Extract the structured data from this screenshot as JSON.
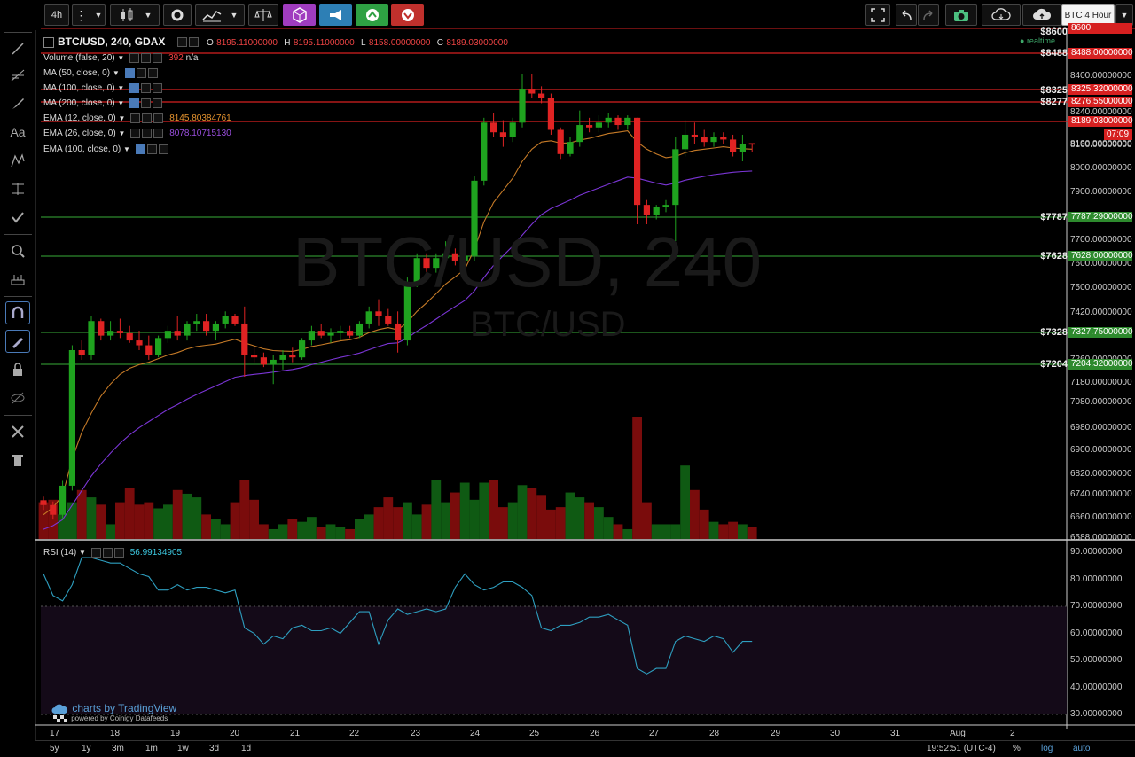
{
  "toolbar": {
    "interval": "4h",
    "tooltip": "BTC 4 Hour"
  },
  "legend": {
    "symbol": "BTC/USD, 240, GDAX",
    "o_label": "O",
    "o_value": "8195.11000000",
    "h_label": "H",
    "h_value": "8195.11000000",
    "l_label": "L",
    "l_value": "8158.00000000",
    "c_label": "C",
    "c_value": "8189.03000000",
    "volume": "Volume (false, 20)",
    "volume_value": "392",
    "volume_na": "n/a",
    "ma50": "MA (50, close, 0)",
    "ma100": "MA (100, close, 0)",
    "ma200": "MA (200, close, 0)",
    "ema12": "EMA (12, close, 0)",
    "ema12_value": "8145.80384761",
    "ema26": "EMA (26, close, 0)",
    "ema26_value": "8078.10715130",
    "ema100": "EMA (100, close, 0)",
    "rsi": "RSI (14)",
    "rsi_value": "56.99134905",
    "realtime": "realtime"
  },
  "watermark": {
    "main": "BTC/USD, 240",
    "sub": "BTC/USD"
  },
  "branding": {
    "tv": "charts by TradingView",
    "powered": "powered by Coinigy Datafeeds"
  },
  "price_ticks": [
    "8600",
    "8400.00000000",
    "8320.00000000",
    "8240.00000000",
    "8160.00000000",
    "8100.00000000",
    "8000.00000000",
    "7900.00000000",
    "7800.00000000",
    "7700.00000000",
    "7600.00000000",
    "7500.00000000",
    "7420.00000000",
    "7340.00000000",
    "7260.00000000",
    "7180.00000000",
    "7080.00000000",
    "6980.00000000",
    "6900.00000000",
    "6820.00000000",
    "6740.00000000",
    "6660.00000000",
    "6588.00000000"
  ],
  "rsi_ticks": [
    "90.00000000",
    "80.00000000",
    "70.00000000",
    "60.00000000",
    "50.00000000",
    "40.00000000",
    "30.00000000"
  ],
  "level_lines": [
    {
      "value": "8488.00000000",
      "short": "$8488",
      "color": "#d62020",
      "y": 60
    },
    {
      "value": "8325.32000000",
      "short": "$8325",
      "color": "#d62020",
      "y": 101
    },
    {
      "value": "8276.55000000",
      "short": "$8277",
      "color": "#d62020",
      "y": 115
    },
    {
      "value": "8189.03000000",
      "short": "",
      "color": "#d62020",
      "y": 137
    },
    {
      "value": "7787.29000000",
      "short": "$7787",
      "color": "#2d8a2d",
      "y": 245
    },
    {
      "value": "7628.00000000",
      "short": "$7628",
      "color": "#2d8a2d",
      "y": 289
    },
    {
      "value": "7327.75000000",
      "short": "$7328",
      "color": "#2d8a2d",
      "y": 375
    },
    {
      "value": "7204.32000000",
      "short": "$7204",
      "color": "#2d8a2d",
      "y": 411
    }
  ],
  "top_level": {
    "value": "8600",
    "short": "$8600"
  },
  "countdown": "07:09",
  "x_ticks": [
    {
      "label": "17",
      "x": 60
    },
    {
      "label": "18",
      "x": 128
    },
    {
      "label": "19",
      "x": 196
    },
    {
      "label": "20",
      "x": 263
    },
    {
      "label": "21",
      "x": 331
    },
    {
      "label": "22",
      "x": 398
    },
    {
      "label": "23",
      "x": 467
    },
    {
      "label": "24",
      "x": 534
    },
    {
      "label": "25",
      "x": 601
    },
    {
      "label": "26",
      "x": 669
    },
    {
      "label": "27",
      "x": 736
    },
    {
      "label": "28",
      "x": 804
    },
    {
      "label": "29",
      "x": 873
    },
    {
      "label": "30",
      "x": 940
    },
    {
      "label": "31",
      "x": 1008
    },
    {
      "label": "Aug",
      "x": 1075
    },
    {
      "label": "2",
      "x": 1143
    }
  ],
  "bottom": {
    "ranges": [
      "5y",
      "1y",
      "3m",
      "1m",
      "1w",
      "3d",
      "1d"
    ],
    "clock": "19:52:51 (UTC-4)",
    "pct": "%",
    "log": "log",
    "auto": "auto"
  },
  "chart_data": {
    "type": "candlestick",
    "title": "BTC/USD, 240, GDAX",
    "ylabel": "",
    "ylim": [
      6560,
      8640
    ],
    "x_axis": "July 17 – Aug 2, 4h candles",
    "candles": [
      [
        6720,
        6735,
        6680,
        6700
      ],
      [
        6700,
        6715,
        6640,
        6660
      ],
      [
        6660,
        6800,
        6640,
        6780
      ],
      [
        6780,
        7360,
        6760,
        7340
      ],
      [
        7340,
        7380,
        7300,
        7320
      ],
      [
        7320,
        7480,
        7300,
        7460
      ],
      [
        7460,
        7470,
        7380,
        7400
      ],
      [
        7400,
        7460,
        7380,
        7420
      ],
      [
        7420,
        7470,
        7390,
        7410
      ],
      [
        7410,
        7440,
        7370,
        7380
      ],
      [
        7380,
        7420,
        7340,
        7360
      ],
      [
        7360,
        7400,
        7300,
        7320
      ],
      [
        7320,
        7400,
        7310,
        7390
      ],
      [
        7390,
        7440,
        7370,
        7420
      ],
      [
        7420,
        7480,
        7380,
        7400
      ],
      [
        7400,
        7460,
        7380,
        7450
      ],
      [
        7450,
        7490,
        7420,
        7460
      ],
      [
        7460,
        7490,
        7400,
        7420
      ],
      [
        7420,
        7460,
        7380,
        7450
      ],
      [
        7450,
        7500,
        7430,
        7480
      ],
      [
        7480,
        7490,
        7440,
        7450
      ],
      [
        7450,
        7520,
        7230,
        7320
      ],
      [
        7320,
        7350,
        7290,
        7310
      ],
      [
        7310,
        7330,
        7270,
        7280
      ],
      [
        7280,
        7320,
        7200,
        7300
      ],
      [
        7300,
        7340,
        7260,
        7320
      ],
      [
        7320,
        7350,
        7290,
        7310
      ],
      [
        7310,
        7390,
        7300,
        7380
      ],
      [
        7380,
        7440,
        7360,
        7420
      ],
      [
        7420,
        7450,
        7390,
        7400
      ],
      [
        7400,
        7430,
        7370,
        7410
      ],
      [
        7410,
        7440,
        7380,
        7420
      ],
      [
        7420,
        7440,
        7390,
        7400
      ],
      [
        7400,
        7460,
        7390,
        7450
      ],
      [
        7450,
        7520,
        7430,
        7500
      ],
      [
        7500,
        7550,
        7440,
        7480
      ],
      [
        7480,
        7510,
        7440,
        7450
      ],
      [
        7450,
        7500,
        7330,
        7380
      ],
      [
        7380,
        7640,
        7360,
        7620
      ],
      [
        7620,
        7740,
        7600,
        7720
      ],
      [
        7720,
        7740,
        7650,
        7680
      ],
      [
        7680,
        7740,
        7660,
        7720
      ],
      [
        7720,
        7790,
        7700,
        7740
      ],
      [
        7740,
        7760,
        7690,
        7710
      ],
      [
        7710,
        7760,
        7690,
        7730
      ],
      [
        7730,
        8060,
        7710,
        8040
      ],
      [
        8040,
        8300,
        8020,
        8280
      ],
      [
        8280,
        8320,
        8220,
        8240
      ],
      [
        8240,
        8290,
        8180,
        8220
      ],
      [
        8220,
        8300,
        8200,
        8280
      ],
      [
        8280,
        8480,
        8260,
        8420
      ],
      [
        8420,
        8480,
        8380,
        8400
      ],
      [
        8400,
        8430,
        8360,
        8380
      ],
      [
        8380,
        8400,
        8230,
        8250
      ],
      [
        8250,
        8260,
        8130,
        8150
      ],
      [
        8150,
        8220,
        8140,
        8200
      ],
      [
        8200,
        8330,
        8180,
        8270
      ],
      [
        8270,
        8300,
        8240,
        8260
      ],
      [
        8260,
        8310,
        8240,
        8280
      ],
      [
        8280,
        8320,
        8260,
        8300
      ],
      [
        8300,
        8310,
        8250,
        8270
      ],
      [
        8270,
        8310,
        8250,
        8300
      ],
      [
        8300,
        8300,
        7860,
        7940
      ],
      [
        7940,
        7960,
        7860,
        7900
      ],
      [
        7900,
        7940,
        7880,
        7930
      ],
      [
        7930,
        7960,
        7910,
        7940
      ],
      [
        7940,
        8220,
        7790,
        8170
      ],
      [
        8170,
        8290,
        8140,
        8230
      ],
      [
        8230,
        8280,
        8190,
        8220
      ],
      [
        8220,
        8250,
        8180,
        8200
      ],
      [
        8200,
        8240,
        8180,
        8220
      ],
      [
        8220,
        8240,
        8190,
        8210
      ],
      [
        8210,
        8230,
        8140,
        8160
      ],
      [
        8160,
        8230,
        8120,
        8190
      ],
      [
        8195,
        8195,
        8158,
        8189
      ]
    ],
    "volume": [
      30,
      32,
      20,
      30,
      40,
      34,
      28,
      12,
      30,
      42,
      28,
      30,
      25,
      28,
      40,
      37,
      34,
      20,
      16,
      12,
      30,
      48,
      32,
      12,
      8,
      12,
      16,
      14,
      18,
      10,
      12,
      10,
      8,
      16,
      20,
      26,
      34,
      26,
      30,
      20,
      28,
      48,
      30,
      38,
      46,
      32,
      46,
      48,
      26,
      30,
      44,
      42,
      36,
      24,
      26,
      38,
      34,
      30,
      26,
      18,
      12,
      8,
      100,
      30,
      12,
      12,
      12,
      60,
      40,
      24,
      14,
      12,
      14,
      12,
      10
    ],
    "ema12": [
      6660,
      6690,
      6740,
      6890,
      7000,
      7080,
      7150,
      7200,
      7240,
      7265,
      7280,
      7290,
      7305,
      7320,
      7330,
      7345,
      7355,
      7360,
      7365,
      7375,
      7385,
      7370,
      7358,
      7345,
      7338,
      7336,
      7335,
      7343,
      7355,
      7362,
      7370,
      7378,
      7383,
      7393,
      7412,
      7425,
      7433,
      7424,
      7455,
      7500,
      7535,
      7573,
      7613,
      7643,
      7674,
      7756,
      7870,
      7950,
      8000,
      8050,
      8120,
      8170,
      8200,
      8205,
      8195,
      8196,
      8208,
      8215,
      8225,
      8235,
      8240,
      8246,
      8200,
      8170,
      8150,
      8135,
      8140,
      8155,
      8165,
      8170,
      8175,
      8180,
      8175,
      8172,
      8170
    ],
    "ema26": [
      6600,
      6615,
      6640,
      6700,
      6760,
      6820,
      6870,
      6915,
      6955,
      6990,
      7020,
      7045,
      7070,
      7095,
      7115,
      7137,
      7157,
      7175,
      7192,
      7210,
      7228,
      7235,
      7240,
      7244,
      7249,
      7255,
      7260,
      7268,
      7280,
      7290,
      7300,
      7310,
      7318,
      7328,
      7342,
      7355,
      7367,
      7370,
      7390,
      7418,
      7442,
      7468,
      7495,
      7520,
      7545,
      7585,
      7640,
      7690,
      7730,
      7770,
      7815,
      7860,
      7900,
      7925,
      7942,
      7960,
      7980,
      7995,
      8010,
      8025,
      8040,
      8055,
      8050,
      8040,
      8030,
      8022,
      8030,
      8042,
      8050,
      8058,
      8065,
      8070,
      8075,
      8078,
      8080
    ],
    "rsi": [
      82,
      74,
      72,
      78,
      88,
      88,
      87,
      86,
      86,
      84,
      82,
      81,
      76,
      76,
      78,
      76,
      77,
      77,
      76,
      75,
      76,
      62,
      60,
      56,
      59,
      58,
      62,
      63,
      61,
      61,
      62,
      60,
      64,
      68,
      68,
      56,
      65,
      69,
      67,
      68,
      69,
      68,
      69,
      77,
      82,
      78,
      76,
      77,
      79,
      79,
      77,
      74,
      62,
      61,
      63,
      63,
      64,
      66,
      66,
      67,
      65,
      63,
      47,
      45,
      47,
      47,
      57,
      59,
      58,
      57,
      59,
      58,
      53,
      57,
      57
    ]
  }
}
